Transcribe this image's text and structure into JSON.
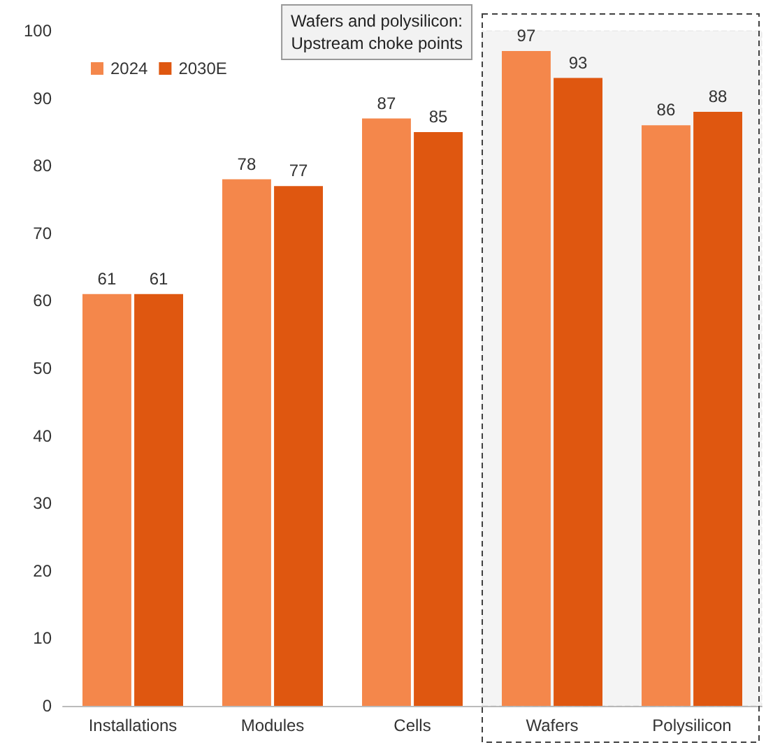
{
  "chart_data": {
    "type": "bar",
    "categories": [
      "Installations",
      "Modules",
      "Cells",
      "Wafers",
      "Polysilicon"
    ],
    "series": [
      {
        "name": "2024",
        "color": "#f4874b",
        "values": [
          61,
          78,
          87,
          97,
          86
        ]
      },
      {
        "name": "2030E",
        "color": "#df5710",
        "values": [
          61,
          77,
          85,
          93,
          88
        ]
      }
    ],
    "ylim": [
      0,
      100
    ],
    "yticks": [
      0,
      10,
      20,
      30,
      40,
      50,
      60,
      70,
      80,
      90,
      100
    ],
    "grid": false,
    "legend": "top left",
    "data_labels": true,
    "bands": [
      {
        "axis": "x",
        "from": "Wafers",
        "to": "Polysilicon",
        "label": "Wafers and polysilicon:\nUpstream choke points",
        "color": "#404040"
      }
    ]
  }
}
